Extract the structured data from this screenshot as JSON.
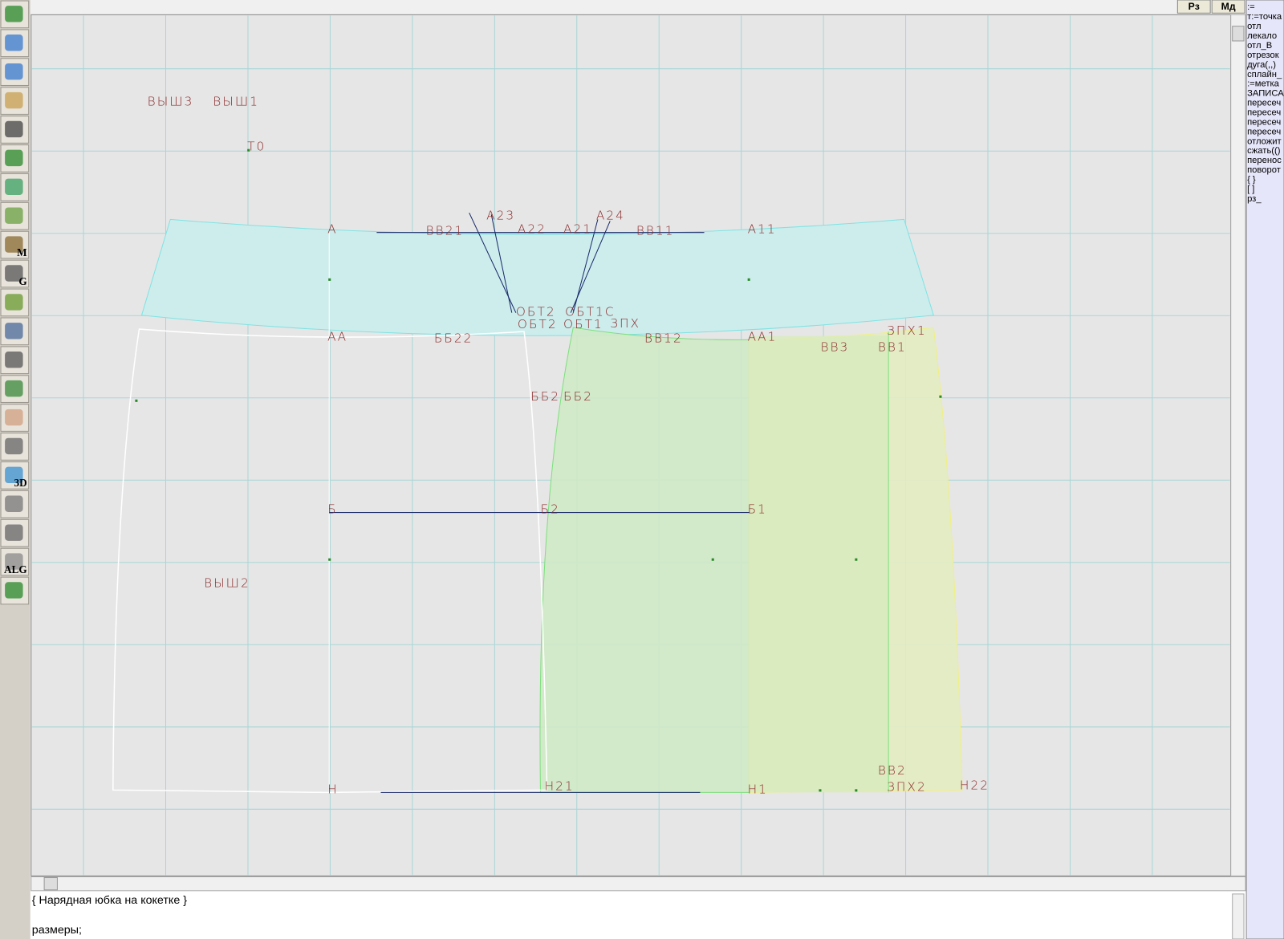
{
  "top_buttons": [
    "Рз",
    "Мд"
  ],
  "toolbar": {
    "icon_labels": [
      "M",
      "G",
      "3D",
      "ALG"
    ]
  },
  "canvas": {
    "labels": [
      "ВЫШ3",
      "ВЫШ1",
      "Т0",
      "А",
      "А23",
      "А24",
      "А11",
      "А22",
      "А21",
      "ВВ21",
      "ВВ11",
      "АА",
      "ББ22",
      "ОБТ2",
      "ОБТ1С",
      "ОБТ2",
      "ОБТ1",
      "ЗПХ",
      "ВВ12",
      "АА1",
      "ЗПХ1",
      "ВВ3",
      "ВВ1",
      "ББ2",
      "ББ2",
      "Б",
      "Б2",
      "Б1",
      "ВЫШ2",
      "Н",
      "Н21",
      "Н1",
      "ВВ2",
      "ЗПХ2",
      "Н22"
    ]
  },
  "command_panel": {
    "items": [
      ":=",
      "т:=точка",
      "отл",
      "лекало",
      "отл_В",
      "отрезок",
      "дуга(,,)",
      "сплайн_",
      ":=метка",
      "ЗАПИСА",
      "пересеч",
      "пересеч",
      "пересеч",
      "пересеч",
      "отложит",
      "сжать(()",
      "перенос",
      "поворот",
      "{ }",
      "[ ]",
      "рз_"
    ]
  },
  "editor": {
    "lines": [
      "{ Нарядная юбка на кокетке }",
      "размеры;"
    ]
  }
}
